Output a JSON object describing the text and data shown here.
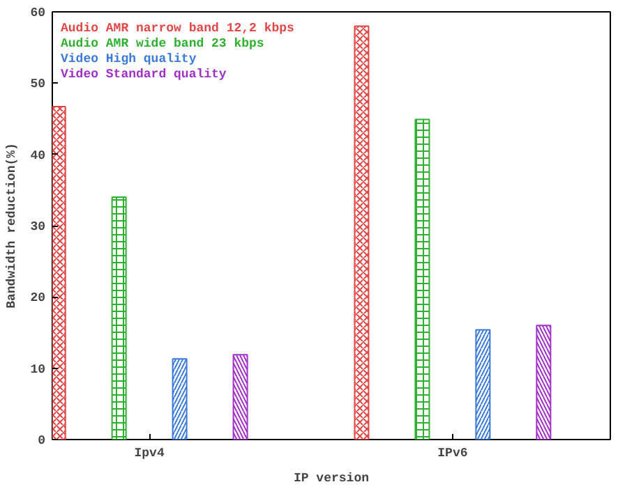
{
  "chart_data": {
    "type": "bar",
    "xlabel": "IP version",
    "ylabel": "Bandwidth reduction(%)",
    "categories": [
      "Ipv4",
      "IPv6"
    ],
    "series": [
      {
        "name": "Audio AMR narrow band 12,2 kbps",
        "color": "#e04848",
        "values": [
          46.7,
          58
        ]
      },
      {
        "name": "Audio AMR wide band 23 kbps",
        "color": "#30b030",
        "values": [
          34,
          44.9
        ]
      },
      {
        "name": "Video High quality",
        "color": "#3a7ad8",
        "values": [
          11.3,
          15.4
        ]
      },
      {
        "name": "Video Standard quality",
        "color": "#a030c8",
        "values": [
          11.9,
          16
        ]
      }
    ],
    "ylim": [
      0,
      60
    ],
    "yticks": [
      0,
      10,
      20,
      30,
      40,
      50,
      60
    ],
    "legend": "top left",
    "grid": false
  }
}
